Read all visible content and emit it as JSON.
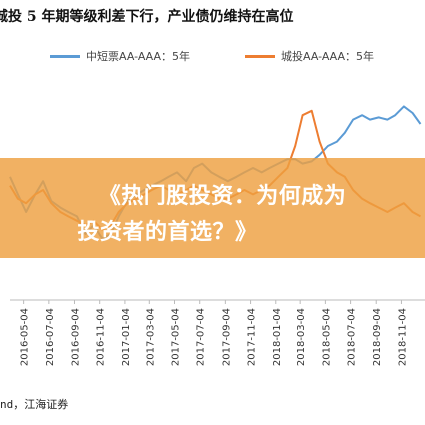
{
  "header": {
    "title": "城投 5 年期等级利差下行，产业债仍维持在高位"
  },
  "legend": {
    "series_1": "中短票AA-AAA：5年",
    "series_2": "城投AA-AAA：5年"
  },
  "banner": {
    "line1": "《热门股投资：为何成为",
    "line2": "投资者的首选？》"
  },
  "footer": {
    "source": "nd，江海证券"
  },
  "colors": {
    "series_1": "#5b9bd5",
    "series_2": "#ed7d31",
    "banner": "#eea041",
    "axis": "#bbbbbb"
  },
  "chart_data": {
    "type": "line",
    "title": "城投 5 年期等级利差下行，产业债仍维持在高位",
    "x_tick_labels": [
      "2016-05-04",
      "2016-07-04",
      "2016-09-04",
      "2016-11-04",
      "2017-01-04",
      "2017-03-04",
      "2017-05-04",
      "2017-07-04",
      "2017-09-04",
      "2017-11-04",
      "2018-01-04",
      "2018-03-04",
      "2018-05-04",
      "2018-07-04",
      "2018-09-04",
      "2018-11-04"
    ],
    "y_range": [
      0,
      100
    ],
    "series": [
      {
        "name": "中短票AA-AAA：5年",
        "x": [
          "2016-04-01",
          "2016-04-20",
          "2016-05-10",
          "2016-06-01",
          "2016-06-20",
          "2016-07-10",
          "2016-08-01",
          "2016-08-20",
          "2016-09-10",
          "2016-10-01",
          "2016-10-20",
          "2016-11-10",
          "2016-12-01",
          "2016-12-20",
          "2017-01-10",
          "2017-02-01",
          "2017-02-20",
          "2017-03-10",
          "2017-04-01",
          "2017-04-20",
          "2017-05-10",
          "2017-06-01",
          "2017-06-20",
          "2017-07-10",
          "2017-08-01",
          "2017-08-20",
          "2017-09-10",
          "2017-10-01",
          "2017-10-20",
          "2017-11-10",
          "2017-12-01",
          "2017-12-20",
          "2018-01-10",
          "2018-02-01",
          "2018-02-20",
          "2018-03-10",
          "2018-04-01",
          "2018-04-20",
          "2018-05-10",
          "2018-06-01",
          "2018-06-20",
          "2018-07-10",
          "2018-08-01",
          "2018-08-20",
          "2018-09-10",
          "2018-10-01",
          "2018-10-20",
          "2018-11-10",
          "2018-12-01",
          "2018-12-20"
        ],
        "values": [
          56,
          48,
          40,
          48,
          54,
          45,
          42,
          40,
          38,
          30,
          34,
          28,
          30,
          38,
          45,
          48,
          50,
          52,
          54,
          56,
          58,
          54,
          60,
          62,
          58,
          56,
          54,
          56,
          58,
          60,
          58,
          60,
          62,
          64,
          64,
          62,
          63,
          66,
          70,
          72,
          76,
          82,
          84,
          82,
          83,
          82,
          84,
          88,
          85,
          80
        ]
      },
      {
        "name": "城投AA-AAA：5年",
        "x": [
          "2016-04-01",
          "2016-04-20",
          "2016-05-10",
          "2016-06-01",
          "2016-06-20",
          "2016-07-10",
          "2016-08-01",
          "2016-08-20",
          "2016-09-10",
          "2016-10-01",
          "2016-10-20",
          "2016-11-10",
          "2016-12-01",
          "2016-12-20",
          "2017-01-10",
          "2017-02-01",
          "2017-02-20",
          "2017-03-10",
          "2017-04-01",
          "2017-04-20",
          "2017-05-10",
          "2017-06-01",
          "2017-06-20",
          "2017-07-10",
          "2017-08-01",
          "2017-08-20",
          "2017-09-10",
          "2017-10-01",
          "2017-10-20",
          "2017-11-10",
          "2017-12-01",
          "2017-12-20",
          "2018-01-10",
          "2018-02-01",
          "2018-02-20",
          "2018-03-10",
          "2018-04-01",
          "2018-04-20",
          "2018-05-10",
          "2018-06-01",
          "2018-06-20",
          "2018-07-10",
          "2018-08-01",
          "2018-08-20",
          "2018-09-10",
          "2018-10-01",
          "2018-10-20",
          "2018-11-10",
          "2018-12-01",
          "2018-12-20"
        ],
        "values": [
          52,
          46,
          44,
          48,
          50,
          44,
          40,
          38,
          36,
          34,
          36,
          32,
          34,
          40,
          44,
          46,
          48,
          50,
          52,
          50,
          48,
          50,
          52,
          50,
          48,
          46,
          46,
          48,
          50,
          48,
          50,
          52,
          56,
          60,
          70,
          84,
          86,
          72,
          62,
          58,
          56,
          50,
          46,
          44,
          42,
          40,
          42,
          44,
          40,
          38
        ]
      }
    ]
  }
}
